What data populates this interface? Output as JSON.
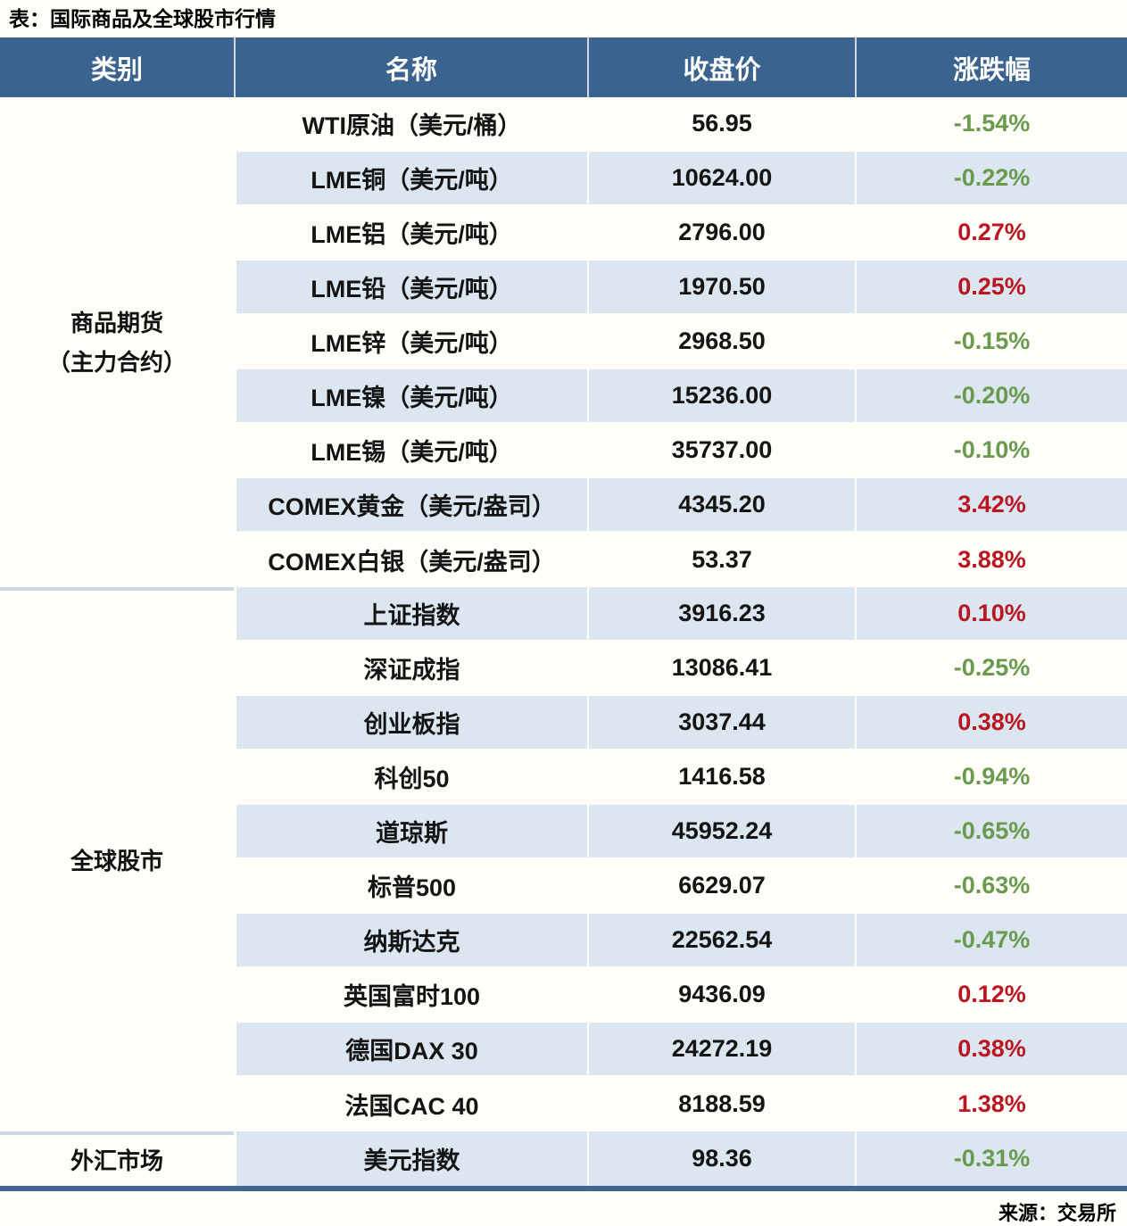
{
  "title": "表：国际商品及全球股市行情",
  "source": "来源：交易所",
  "colors": {
    "header_bg": "#3a648f",
    "row_alt_bg": "#dce6f0",
    "row_bg": "#fffef9",
    "up_red": "#b91622",
    "down_green": "#699a4e",
    "bottom_border": "#3e6690"
  },
  "table": {
    "headers": [
      "类别",
      "名称",
      "收盘价",
      "涨跌幅"
    ],
    "sections": [
      {
        "category_lines": [
          "商品期货",
          "（主力合约）"
        ],
        "rows": [
          {
            "name": "WTI原油（美元/桶）",
            "close": "56.95",
            "change": "-1.54%",
            "direction": "down"
          },
          {
            "name": "LME铜（美元/吨）",
            "close": "10624.00",
            "change": "-0.22%",
            "direction": "down"
          },
          {
            "name": "LME铝（美元/吨）",
            "close": "2796.00",
            "change": "0.27%",
            "direction": "up"
          },
          {
            "name": "LME铅（美元/吨）",
            "close": "1970.50",
            "change": "0.25%",
            "direction": "up"
          },
          {
            "name": "LME锌（美元/吨）",
            "close": "2968.50",
            "change": "-0.15%",
            "direction": "down"
          },
          {
            "name": "LME镍（美元/吨）",
            "close": "15236.00",
            "change": "-0.20%",
            "direction": "down"
          },
          {
            "name": "LME锡（美元/吨）",
            "close": "35737.00",
            "change": "-0.10%",
            "direction": "down"
          },
          {
            "name": "COMEX黄金（美元/盎司）",
            "close": "4345.20",
            "change": "3.42%",
            "direction": "up"
          },
          {
            "name": "COMEX白银（美元/盎司）",
            "close": "53.37",
            "change": "3.88%",
            "direction": "up"
          }
        ]
      },
      {
        "category_lines": [
          "全球股市"
        ],
        "rows": [
          {
            "name": "上证指数",
            "close": "3916.23",
            "change": "0.10%",
            "direction": "up"
          },
          {
            "name": "深证成指",
            "close": "13086.41",
            "change": "-0.25%",
            "direction": "down"
          },
          {
            "name": "创业板指",
            "close": "3037.44",
            "change": "0.38%",
            "direction": "up"
          },
          {
            "name": "科创50",
            "close": "1416.58",
            "change": "-0.94%",
            "direction": "down"
          },
          {
            "name": "道琼斯",
            "close": "45952.24",
            "change": "-0.65%",
            "direction": "down"
          },
          {
            "name": "标普500",
            "close": "6629.07",
            "change": "-0.63%",
            "direction": "down"
          },
          {
            "name": "纳斯达克",
            "close": "22562.54",
            "change": "-0.47%",
            "direction": "down"
          },
          {
            "name": "英国富时100",
            "close": "9436.09",
            "change": "0.12%",
            "direction": "up"
          },
          {
            "name": "德国DAX 30",
            "close": "24272.19",
            "change": "0.38%",
            "direction": "up"
          },
          {
            "name": "法国CAC 40",
            "close": "8188.59",
            "change": "1.38%",
            "direction": "up"
          }
        ]
      },
      {
        "category_lines": [
          "外汇市场"
        ],
        "rows": [
          {
            "name": "美元指数",
            "close": "98.36",
            "change": "-0.31%",
            "direction": "down"
          }
        ]
      }
    ]
  }
}
